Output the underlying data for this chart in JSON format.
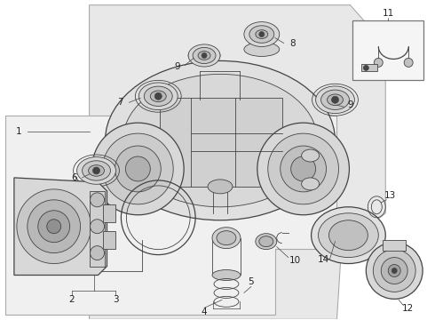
{
  "bg_color": "#f0f0f0",
  "line_color": "#444444",
  "border_color": "#777777",
  "text_color": "#222222",
  "figsize": [
    4.9,
    3.6
  ],
  "dpi": 100,
  "white": "#ffffff",
  "light_gray": "#e8e8e8",
  "mid_gray": "#c8c8c8",
  "dark_gray": "#888888"
}
